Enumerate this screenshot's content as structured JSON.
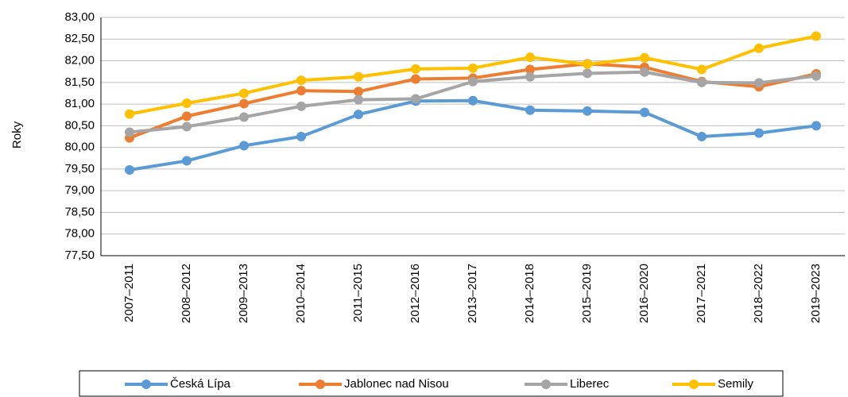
{
  "chart_data": {
    "type": "line",
    "y_label": "Roky",
    "categories": [
      "2007–2011",
      "2008–2012",
      "2009–2013",
      "2010–2014",
      "2011–2015",
      "2012–2016",
      "2013–2017",
      "2014–2018",
      "2015–2019",
      "2016–2020",
      "2017–2021",
      "2018–2022",
      "2019–2023"
    ],
    "series": [
      {
        "name": "Česká Lípa",
        "color": "#5b9bd5",
        "values": [
          79.48,
          79.69,
          80.04,
          80.25,
          80.76,
          81.07,
          81.08,
          80.86,
          80.84,
          80.81,
          80.25,
          80.33,
          80.5
        ]
      },
      {
        "name": "Jablonec nad Nisou",
        "color": "#ed7d31",
        "values": [
          80.22,
          80.72,
          81.01,
          81.31,
          81.29,
          81.58,
          81.6,
          81.8,
          81.93,
          81.85,
          81.52,
          81.4,
          81.7
        ]
      },
      {
        "name": "Liberec",
        "color": "#a5a5a5",
        "values": [
          80.35,
          80.48,
          80.7,
          80.95,
          81.1,
          81.12,
          81.52,
          81.63,
          81.71,
          81.74,
          81.5,
          81.49,
          81.65
        ]
      },
      {
        "name": "Semily",
        "color": "#ffc000",
        "values": [
          80.77,
          81.02,
          81.25,
          81.55,
          81.63,
          81.81,
          81.83,
          82.08,
          81.92,
          82.07,
          81.8,
          82.29,
          82.57
        ]
      }
    ],
    "ylim": [
      77.5,
      83
    ],
    "yticks": [
      {
        "value": 77.5,
        "label": "77,50"
      },
      {
        "value": 78,
        "label": "78,00"
      },
      {
        "value": 78.5,
        "label": "78,50"
      },
      {
        "value": 79,
        "label": "79,00"
      },
      {
        "value": 79.5,
        "label": "79,50"
      },
      {
        "value": 80,
        "label": "80,00"
      },
      {
        "value": 80.5,
        "label": "80,50"
      },
      {
        "value": 81,
        "label": "81,00"
      },
      {
        "value": 81.5,
        "label": "81,50"
      },
      {
        "value": 82,
        "label": "82,00"
      },
      {
        "value": 82.5,
        "label": "82,50"
      },
      {
        "value": 83,
        "label": "83,00"
      }
    ],
    "grid": true,
    "legend": "bottom"
  }
}
